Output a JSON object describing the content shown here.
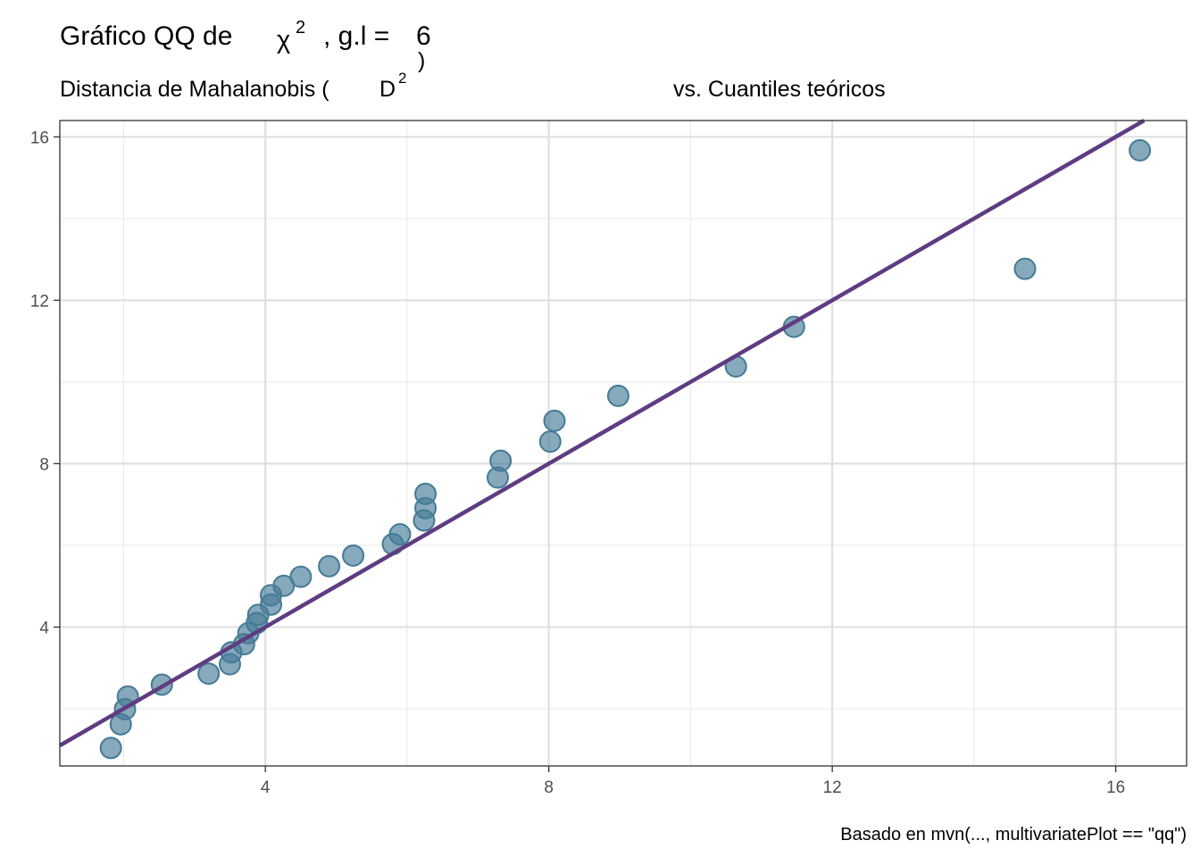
{
  "chart_data": {
    "type": "scatter",
    "title": {
      "prefix": "Gráfico QQ de",
      "symbol": "χ",
      "superscript": "2",
      "df_label": ", g.l =",
      "df_value": "6"
    },
    "subtitle": {
      "left": "Distancia de Mahalanobis (",
      "symbol": "D",
      "superscript": "2",
      "close": ")",
      "right": "vs. Cuantiles teóricos"
    },
    "caption": "Basado en mvn(..., multivariatePlot == \"qq\")",
    "xlim": [
      1.1,
      17.0
    ],
    "ylim": [
      0.6,
      16.4
    ],
    "x_ticks": [
      4,
      8,
      12,
      16
    ],
    "y_ticks": [
      4,
      8,
      12,
      16
    ],
    "x_tick_labels": [
      "4",
      "8",
      "12",
      "16"
    ],
    "y_tick_labels": [
      "4",
      "8",
      "12",
      "16"
    ],
    "grid": true,
    "reference_line": {
      "slope": 1,
      "intercept": 0,
      "color": "#5e3c82"
    },
    "point_color": "#457b96",
    "line_color": "#5e3c82",
    "points": [
      {
        "x": 1.82,
        "y": 1.04
      },
      {
        "x": 1.96,
        "y": 1.62
      },
      {
        "x": 2.02,
        "y": 1.99
      },
      {
        "x": 2.06,
        "y": 2.3
      },
      {
        "x": 2.54,
        "y": 2.59
      },
      {
        "x": 3.2,
        "y": 2.86
      },
      {
        "x": 3.5,
        "y": 3.09
      },
      {
        "x": 3.52,
        "y": 3.38
      },
      {
        "x": 3.7,
        "y": 3.58
      },
      {
        "x": 3.76,
        "y": 3.85
      },
      {
        "x": 3.88,
        "y": 4.1
      },
      {
        "x": 3.9,
        "y": 4.3
      },
      {
        "x": 4.08,
        "y": 4.55
      },
      {
        "x": 4.08,
        "y": 4.78
      },
      {
        "x": 4.26,
        "y": 5.01
      },
      {
        "x": 4.5,
        "y": 5.23
      },
      {
        "x": 4.9,
        "y": 5.49
      },
      {
        "x": 5.24,
        "y": 5.75
      },
      {
        "x": 5.8,
        "y": 6.03
      },
      {
        "x": 5.9,
        "y": 6.27
      },
      {
        "x": 6.24,
        "y": 6.61
      },
      {
        "x": 6.26,
        "y": 6.91
      },
      {
        "x": 6.26,
        "y": 7.26
      },
      {
        "x": 7.28,
        "y": 7.66
      },
      {
        "x": 7.32,
        "y": 8.07
      },
      {
        "x": 8.02,
        "y": 8.54
      },
      {
        "x": 8.08,
        "y": 9.05
      },
      {
        "x": 8.98,
        "y": 9.66
      },
      {
        "x": 10.64,
        "y": 10.38
      },
      {
        "x": 11.46,
        "y": 11.35
      },
      {
        "x": 14.72,
        "y": 12.77
      },
      {
        "x": 16.34,
        "y": 15.67
      }
    ]
  }
}
